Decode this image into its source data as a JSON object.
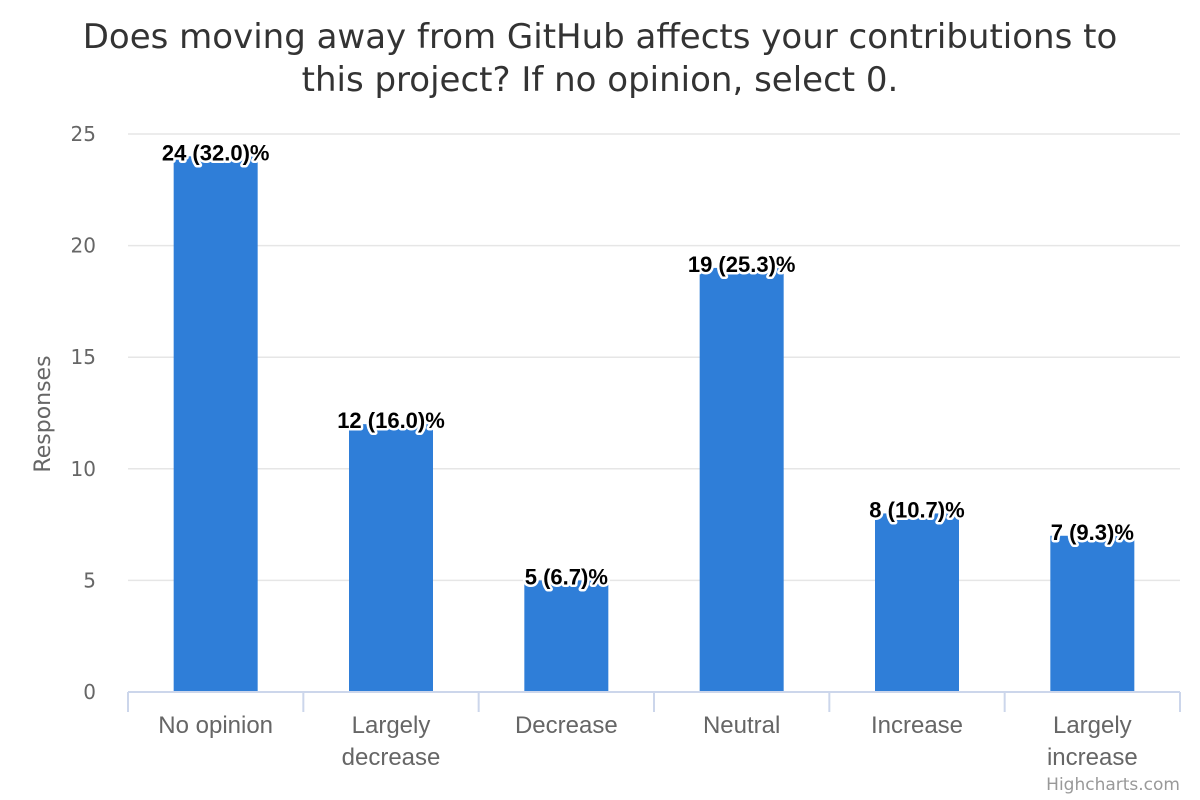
{
  "chart_data": {
    "type": "bar",
    "title_lines": [
      "Does moving away from GitHub affects your contributions to",
      "this project? If no opinion, select 0."
    ],
    "xlabel": "",
    "ylabel": "Responses",
    "ylim": [
      0,
      25
    ],
    "yticks": [
      "0",
      "5",
      "10",
      "15",
      "20",
      "25"
    ],
    "grid": true,
    "legend": false,
    "bar_color": "#2f7ed8",
    "categories": [
      [
        "No opinion"
      ],
      [
        "Largely",
        "decrease"
      ],
      [
        "Decrease"
      ],
      [
        "Neutral"
      ],
      [
        "Increase"
      ],
      [
        "Largely",
        "increase"
      ]
    ],
    "values": [
      24,
      12,
      5,
      19,
      8,
      7
    ],
    "data_labels": [
      "24 (32.0)%",
      "12 (16.0)%",
      "5 (6.7)%",
      "19 (25.3)%",
      "8 (10.7)%",
      "7 (9.3)%"
    ],
    "credits": "Highcharts.com"
  }
}
